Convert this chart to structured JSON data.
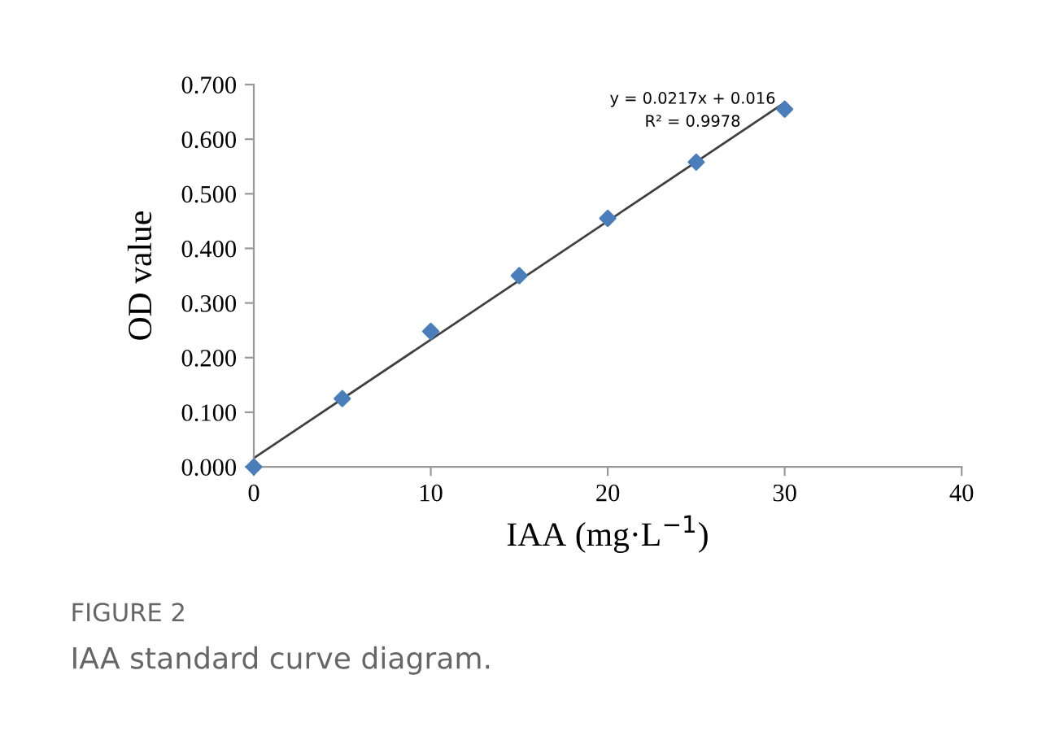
{
  "chart_data": {
    "type": "scatter",
    "xlabel": "IAA (mg·L$^{−1}$)",
    "ylabel": "OD value",
    "xlim": [
      0,
      40
    ],
    "xticks": [
      0,
      10,
      20,
      30,
      40
    ],
    "ylim": [
      0,
      0.7
    ],
    "yticks": [
      {
        "value": 0,
        "label": "0.000"
      },
      {
        "value": 0.1,
        "label": "0.100"
      },
      {
        "value": 0.2,
        "label": "0.200"
      },
      {
        "value": 0.3,
        "label": "0.300"
      },
      {
        "value": 0.4,
        "label": "0.400"
      },
      {
        "value": 0.5,
        "label": "0.500"
      },
      {
        "value": 0.6,
        "label": "0.600"
      },
      {
        "value": 0.7,
        "label": "0.700"
      }
    ],
    "grid": false,
    "legend": false,
    "series": [
      {
        "color": "#4a7ebb",
        "marker": "diamond",
        "x": [
          0,
          5,
          10,
          15,
          20,
          25,
          30
        ],
        "values": [
          0.0,
          0.125,
          0.248,
          0.35,
          0.455,
          0.558,
          0.655
        ]
      },
      {
        "type": "line",
        "color": "#404040",
        "marker": "none",
        "line_style": "solid",
        "x": [
          0,
          30
        ],
        "values": [
          0.016,
          0.667
        ]
      }
    ],
    "annotations": [
      "y = 0.0217x + 0.016",
      "R² = 0.9978",
      "FIGURE 2",
      "IAA standard curve diagram."
    ]
  }
}
